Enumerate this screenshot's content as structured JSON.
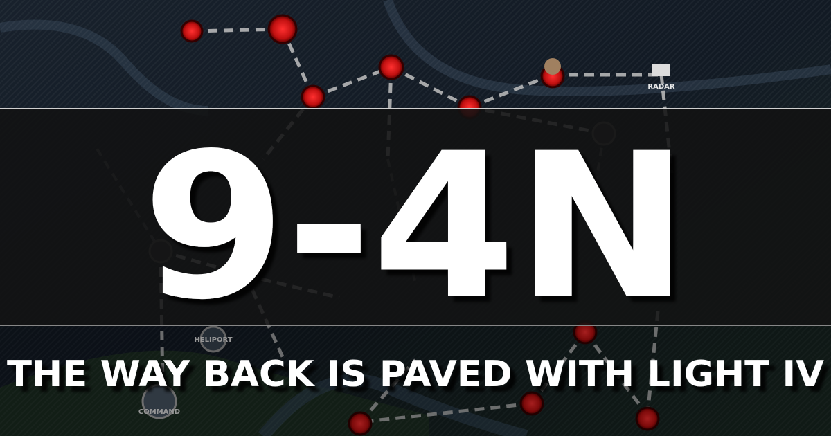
{
  "banner": {
    "title": "9-4N",
    "subtitle": "THE WAY BACK IS PAVED WITH LIGHT IV"
  },
  "map": {
    "labels": [
      "RADAR",
      "HELIPORT",
      "COMMAND"
    ]
  }
}
